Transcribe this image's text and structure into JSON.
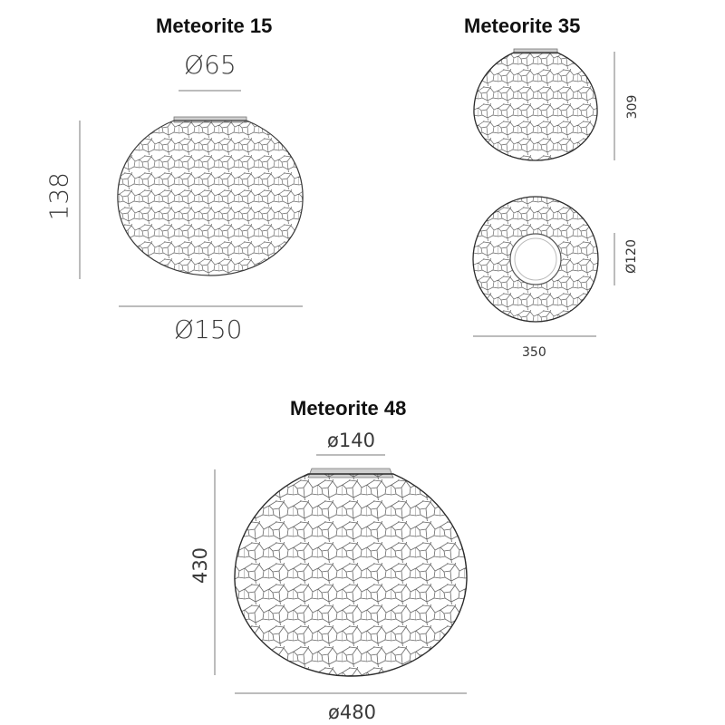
{
  "products": [
    {
      "name": "Meteorite 15",
      "top_diameter": "Ø65",
      "height": "138",
      "width": "Ø150"
    },
    {
      "name": "Meteorite 35",
      "height": "309",
      "opening": "Ø120",
      "width": "350"
    },
    {
      "name": "Meteorite 48",
      "top_diameter": "ø140",
      "height": "430",
      "width": "ø480"
    }
  ],
  "colors": {
    "outline": "#2b2b2b",
    "cell_line": "#6a6a6a",
    "dim_line": "#7a7a7a",
    "collar": "#c8c8c8"
  }
}
